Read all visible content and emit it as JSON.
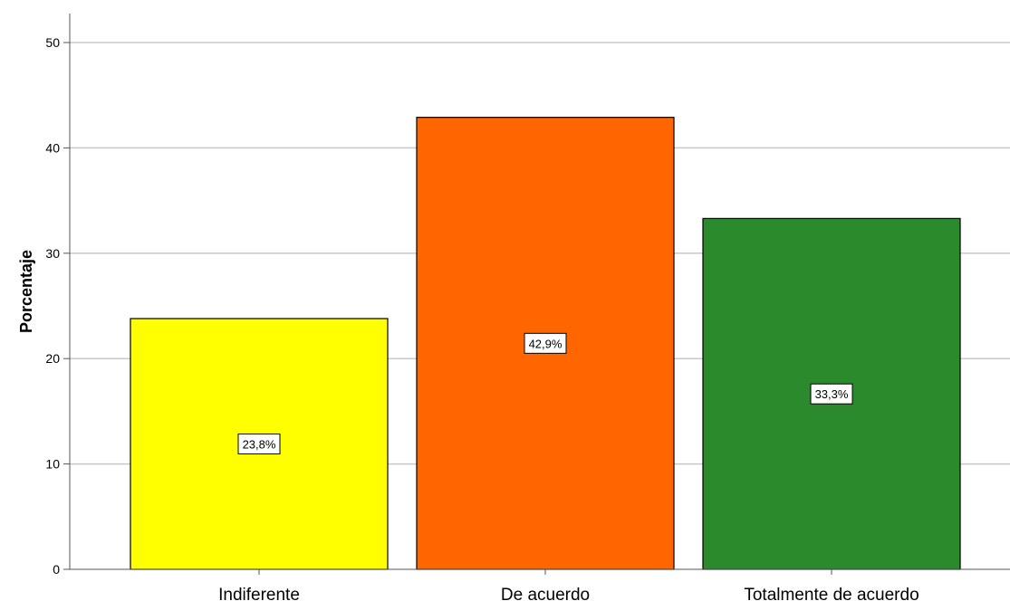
{
  "chart_data": {
    "type": "bar",
    "title": "",
    "xlabel": "",
    "ylabel": "Porcentaje",
    "ylim": [
      0,
      50
    ],
    "yticks": [
      0,
      10,
      20,
      30,
      40,
      50
    ],
    "grid": true,
    "categories": [
      "Indiferente",
      "De acuerdo",
      "Totalmente de acuerdo"
    ],
    "values": [
      23.8,
      42.9,
      33.3
    ],
    "data_labels": [
      "23,8%",
      "42,9%",
      "33,3%"
    ],
    "colors": [
      "#ffff00",
      "#ff6600",
      "#2b8a2b"
    ]
  }
}
